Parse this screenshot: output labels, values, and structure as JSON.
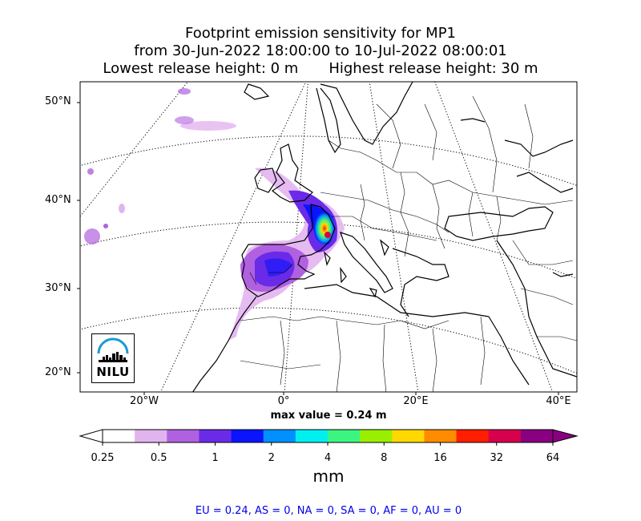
{
  "title": {
    "line1": "Footprint emission sensitivity for MP1",
    "line2": "from 30-Jun-2022 18:00:00 to 10-Jul-2022 08:00:01",
    "lowest": "Lowest release height: 0 m",
    "highest": "Highest release height: 30 m"
  },
  "map": {
    "lat_labels": [
      "50°N",
      "40°N",
      "30°N",
      "20°N"
    ],
    "lon_labels": [
      "20°W",
      "0°",
      "20°E",
      "40°E"
    ],
    "max_value": "max value = 0.24 m",
    "logo_text": "NILU"
  },
  "colorbar": {
    "ticks": [
      "0.25",
      "0.5",
      "1",
      "2",
      "4",
      "8",
      "16",
      "32",
      "64"
    ],
    "units": "mm",
    "colors": [
      "#ffffff",
      "#e2b4ef",
      "#b061e0",
      "#6a2be8",
      "#0a14ff",
      "#0090ff",
      "#00f0f0",
      "#3cf580",
      "#98f000",
      "#ffd800",
      "#ff8c00",
      "#ff1e00",
      "#d6004e",
      "#8a0080"
    ]
  },
  "regions": "EU = 0.24,  AS = 0,  NA = 0,  SA = 0,  AF = 0,  AU = 0"
}
